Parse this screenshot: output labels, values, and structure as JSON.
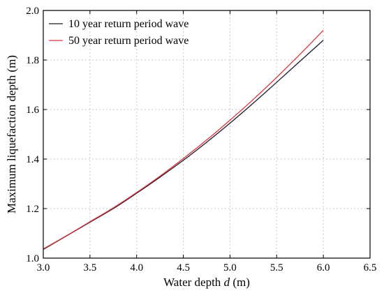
{
  "chart_data": {
    "type": "line",
    "title": "",
    "xlabel": "Water depth",
    "xlabel_var": "d",
    "xlabel_unit": "(m)",
    "ylabel": "Maximum liquefaction depth (m)",
    "xlim": [
      3.0,
      6.5
    ],
    "ylim": [
      1.0,
      2.0
    ],
    "xticks": [
      "3.0",
      "3.5",
      "4.0",
      "4.5",
      "5.0",
      "5.5",
      "6.0",
      "6.5"
    ],
    "yticks": [
      "1.0",
      "1.2",
      "1.4",
      "1.6",
      "1.8",
      "2.0"
    ],
    "grid": true,
    "legend_position": "top-left",
    "series": [
      {
        "name": "10 year return period wave",
        "color": "#1a1a2e",
        "x": [
          3.0,
          3.25,
          3.5,
          3.75,
          4.0,
          4.25,
          4.5,
          4.75,
          5.0,
          5.25,
          5.5,
          5.75,
          6.0
        ],
        "y": [
          1.035,
          1.09,
          1.145,
          1.2,
          1.262,
          1.327,
          1.395,
          1.468,
          1.545,
          1.626,
          1.71,
          1.795,
          1.88
        ]
      },
      {
        "name": "50 year return period wave",
        "color": "#e0323c",
        "x": [
          3.0,
          3.25,
          3.5,
          3.75,
          4.0,
          4.25,
          4.5,
          4.75,
          5.0,
          5.25,
          5.5,
          5.75,
          6.0
        ],
        "y": [
          1.037,
          1.091,
          1.147,
          1.203,
          1.265,
          1.331,
          1.402,
          1.477,
          1.557,
          1.641,
          1.73,
          1.823,
          1.92
        ]
      }
    ]
  }
}
